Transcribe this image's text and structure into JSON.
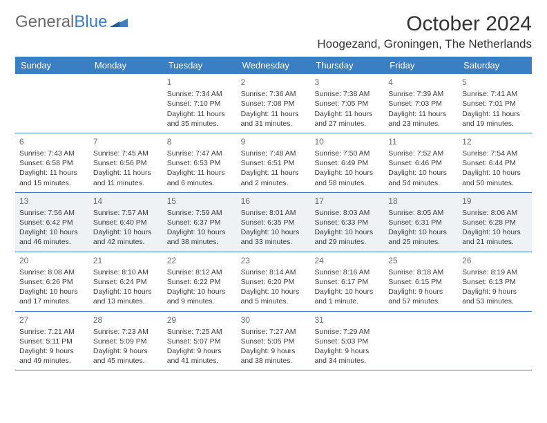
{
  "brand": {
    "part1": "General",
    "part2": "Blue"
  },
  "title": "October 2024",
  "location": "Hoogezand, Groningen, The Netherlands",
  "colors": {
    "header_bg": "#3a7fc4",
    "header_text": "#ffffff",
    "shaded_bg": "#eef2f5",
    "text": "#3a3a3a",
    "border": "#3a7fc4"
  },
  "dayHeaders": [
    "Sunday",
    "Monday",
    "Tuesday",
    "Wednesday",
    "Thursday",
    "Friday",
    "Saturday"
  ],
  "weeks": [
    [
      null,
      null,
      {
        "n": "1",
        "sr": "7:34 AM",
        "ss": "7:10 PM",
        "dl": "11 hours and 35 minutes."
      },
      {
        "n": "2",
        "sr": "7:36 AM",
        "ss": "7:08 PM",
        "dl": "11 hours and 31 minutes."
      },
      {
        "n": "3",
        "sr": "7:38 AM",
        "ss": "7:05 PM",
        "dl": "11 hours and 27 minutes."
      },
      {
        "n": "4",
        "sr": "7:39 AM",
        "ss": "7:03 PM",
        "dl": "11 hours and 23 minutes."
      },
      {
        "n": "5",
        "sr": "7:41 AM",
        "ss": "7:01 PM",
        "dl": "11 hours and 19 minutes."
      }
    ],
    [
      {
        "n": "6",
        "sr": "7:43 AM",
        "ss": "6:58 PM",
        "dl": "11 hours and 15 minutes."
      },
      {
        "n": "7",
        "sr": "7:45 AM",
        "ss": "6:56 PM",
        "dl": "11 hours and 11 minutes."
      },
      {
        "n": "8",
        "sr": "7:47 AM",
        "ss": "6:53 PM",
        "dl": "11 hours and 6 minutes."
      },
      {
        "n": "9",
        "sr": "7:48 AM",
        "ss": "6:51 PM",
        "dl": "11 hours and 2 minutes."
      },
      {
        "n": "10",
        "sr": "7:50 AM",
        "ss": "6:49 PM",
        "dl": "10 hours and 58 minutes."
      },
      {
        "n": "11",
        "sr": "7:52 AM",
        "ss": "6:46 PM",
        "dl": "10 hours and 54 minutes."
      },
      {
        "n": "12",
        "sr": "7:54 AM",
        "ss": "6:44 PM",
        "dl": "10 hours and 50 minutes."
      }
    ],
    [
      {
        "n": "13",
        "sr": "7:56 AM",
        "ss": "6:42 PM",
        "dl": "10 hours and 46 minutes."
      },
      {
        "n": "14",
        "sr": "7:57 AM",
        "ss": "6:40 PM",
        "dl": "10 hours and 42 minutes."
      },
      {
        "n": "15",
        "sr": "7:59 AM",
        "ss": "6:37 PM",
        "dl": "10 hours and 38 minutes."
      },
      {
        "n": "16",
        "sr": "8:01 AM",
        "ss": "6:35 PM",
        "dl": "10 hours and 33 minutes."
      },
      {
        "n": "17",
        "sr": "8:03 AM",
        "ss": "6:33 PM",
        "dl": "10 hours and 29 minutes."
      },
      {
        "n": "18",
        "sr": "8:05 AM",
        "ss": "6:31 PM",
        "dl": "10 hours and 25 minutes."
      },
      {
        "n": "19",
        "sr": "8:06 AM",
        "ss": "6:28 PM",
        "dl": "10 hours and 21 minutes."
      }
    ],
    [
      {
        "n": "20",
        "sr": "8:08 AM",
        "ss": "6:26 PM",
        "dl": "10 hours and 17 minutes."
      },
      {
        "n": "21",
        "sr": "8:10 AM",
        "ss": "6:24 PM",
        "dl": "10 hours and 13 minutes."
      },
      {
        "n": "22",
        "sr": "8:12 AM",
        "ss": "6:22 PM",
        "dl": "10 hours and 9 minutes."
      },
      {
        "n": "23",
        "sr": "8:14 AM",
        "ss": "6:20 PM",
        "dl": "10 hours and 5 minutes."
      },
      {
        "n": "24",
        "sr": "8:16 AM",
        "ss": "6:17 PM",
        "dl": "10 hours and 1 minute."
      },
      {
        "n": "25",
        "sr": "8:18 AM",
        "ss": "6:15 PM",
        "dl": "9 hours and 57 minutes."
      },
      {
        "n": "26",
        "sr": "8:19 AM",
        "ss": "6:13 PM",
        "dl": "9 hours and 53 minutes."
      }
    ],
    [
      {
        "n": "27",
        "sr": "7:21 AM",
        "ss": "5:11 PM",
        "dl": "9 hours and 49 minutes."
      },
      {
        "n": "28",
        "sr": "7:23 AM",
        "ss": "5:09 PM",
        "dl": "9 hours and 45 minutes."
      },
      {
        "n": "29",
        "sr": "7:25 AM",
        "ss": "5:07 PM",
        "dl": "9 hours and 41 minutes."
      },
      {
        "n": "30",
        "sr": "7:27 AM",
        "ss": "5:05 PM",
        "dl": "9 hours and 38 minutes."
      },
      {
        "n": "31",
        "sr": "7:29 AM",
        "ss": "5:03 PM",
        "dl": "9 hours and 34 minutes."
      },
      null,
      null
    ]
  ],
  "shadedRows": [
    2
  ],
  "labels": {
    "sunrise": "Sunrise: ",
    "sunset": "Sunset: ",
    "daylight": "Daylight: "
  }
}
